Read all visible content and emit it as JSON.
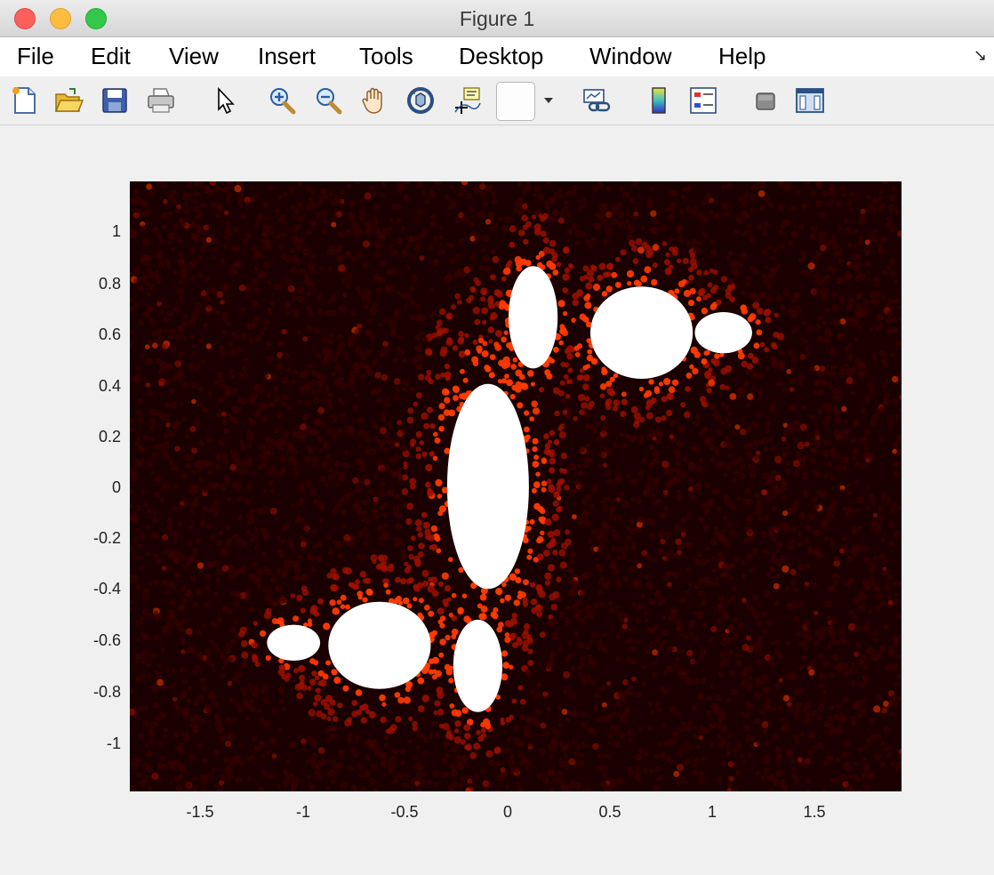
{
  "window": {
    "title": "Figure 1"
  },
  "menu": {
    "items": [
      "File",
      "Edit",
      "View",
      "Insert",
      "Tools",
      "Desktop",
      "Window",
      "Help"
    ],
    "corner_icon": "dock-arrow-icon"
  },
  "toolbar": {
    "icons": [
      "new-figure-icon",
      "open-file-icon",
      "save-icon",
      "print-icon",
      "pointer-icon",
      "zoom-in-icon",
      "zoom-out-icon",
      "pan-hand-icon",
      "rotate-3d-icon",
      "data-cursor-icon",
      "brush-icon",
      "brush-dropdown-icon",
      "link-plot-icon",
      "colorbar-icon",
      "legend-icon",
      "hide-plot-tools-icon",
      "show-plot-tools-icon"
    ]
  },
  "chart_data": {
    "type": "scatter",
    "title": "",
    "xlabel": "",
    "ylabel": "",
    "xlim": [
      -1.85,
      1.92
    ],
    "ylim": [
      -1.19,
      1.19
    ],
    "x_ticks": [
      "-1.5",
      "-1",
      "-0.5",
      "0",
      "0.5",
      "1",
      "1.5"
    ],
    "y_ticks": [
      "1",
      "0.8",
      "0.6",
      "0.4",
      "0.2",
      "0",
      "-0.2",
      "-0.4",
      "-0.6",
      "-0.8",
      "-1"
    ],
    "grid": false,
    "legend": "none",
    "colors": {
      "background": "#1a0000",
      "low": "#3a0000",
      "mid": "#a01000",
      "high": "#ff3a00",
      "set": "#ffffff"
    },
    "white_regions": [
      {
        "name": "central-bulb",
        "cx": -0.1,
        "cy": 0.0,
        "rx": 0.2,
        "ry": 0.4
      },
      {
        "name": "upper-left-bulb",
        "cx": 0.12,
        "cy": 0.66,
        "rx": 0.12,
        "ry": 0.2
      },
      {
        "name": "upper-right-bulb",
        "cx": 0.65,
        "cy": 0.6,
        "rx": 0.25,
        "ry": 0.18
      },
      {
        "name": "far-right-lobe",
        "cx": 1.05,
        "cy": 0.6,
        "rx": 0.14,
        "ry": 0.08
      },
      {
        "name": "lower-left-bulb",
        "cx": -0.63,
        "cy": -0.62,
        "rx": 0.25,
        "ry": 0.17
      },
      {
        "name": "lower-center-bulb",
        "cx": -0.15,
        "cy": -0.7,
        "rx": 0.12,
        "ry": 0.18
      },
      {
        "name": "far-left-lobe",
        "cx": -1.05,
        "cy": -0.61,
        "rx": 0.13,
        "ry": 0.07
      }
    ]
  }
}
